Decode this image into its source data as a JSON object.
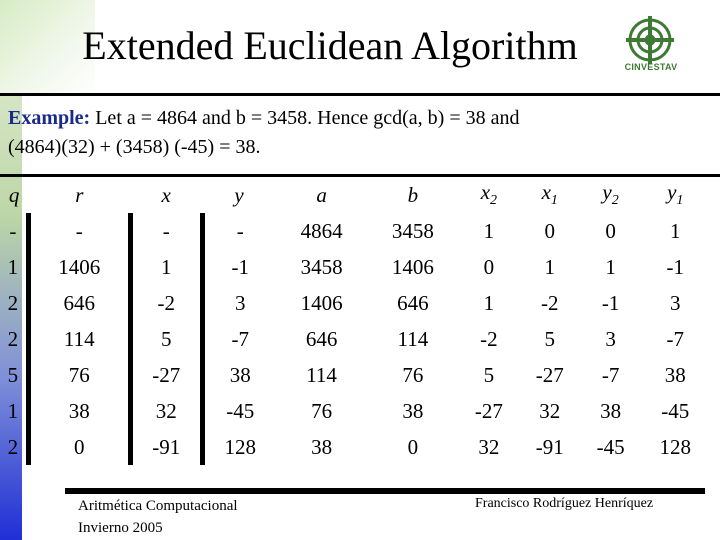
{
  "slide": {
    "title": "Extended Euclidean Algorithm",
    "logo_text": "CINVESTAV"
  },
  "intro": {
    "label": "Example:",
    "line1": " Let a = 4864 and b = 3458. Hence gcd(a, b) = 38 and",
    "line2": "(4864)(32) + (3458) (-45) = 38."
  },
  "table": {
    "headers": [
      "q",
      "r",
      "x",
      "y",
      "a",
      "b",
      "x",
      "x",
      "y",
      "y"
    ],
    "header_subscripts": [
      "",
      "",
      "",
      "",
      "",
      "",
      "2",
      "1",
      "2",
      "1"
    ],
    "rows": [
      [
        "-",
        "-",
        "-",
        "-",
        "4864",
        "3458",
        "1",
        "0",
        "0",
        "1"
      ],
      [
        "1",
        "1406",
        "1",
        "-1",
        "3458",
        "1406",
        "0",
        "1",
        "1",
        "-1"
      ],
      [
        "2",
        "646",
        "-2",
        "3",
        "1406",
        "646",
        "1",
        "-2",
        "-1",
        "3"
      ],
      [
        "2",
        "114",
        "5",
        "-7",
        "646",
        "114",
        "-2",
        "5",
        "3",
        "-7"
      ],
      [
        "5",
        "76",
        "-27",
        "38",
        "114",
        "76",
        "5",
        "-27",
        "-7",
        "38"
      ],
      [
        "1",
        "38",
        "32",
        "-45",
        "76",
        "38",
        "-27",
        "32",
        "38",
        "-45"
      ],
      [
        "2",
        "0",
        "-91",
        "128",
        "38",
        "0",
        "32",
        "-91",
        "-45",
        "128"
      ]
    ]
  },
  "footer": {
    "left_line1": "Aritmética Computacional",
    "left_line2": "Invierno 2005",
    "right": "Francisco Rodríguez Henríquez"
  },
  "colors": {
    "label": "#1a2a8a",
    "logo": "#3f7a35"
  }
}
